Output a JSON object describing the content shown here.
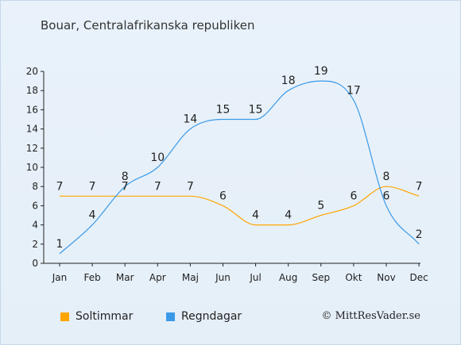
{
  "title": "Bouar, Centralafrikanska republiken",
  "legend": [
    {
      "label": "Soltimmar",
      "color": "#ffa500"
    },
    {
      "label": "Regndagar",
      "color": "#3a9ae8"
    }
  ],
  "copyright": "© MittResVader.se",
  "chart_data": {
    "type": "line",
    "categories": [
      "Jan",
      "Feb",
      "Mar",
      "Apr",
      "Maj",
      "Jun",
      "Jul",
      "Aug",
      "Sep",
      "Okt",
      "Nov",
      "Dec"
    ],
    "series": [
      {
        "name": "Soltimmar",
        "color": "#ffa500",
        "values": [
          7,
          7,
          7,
          7,
          7,
          6,
          4,
          4,
          5,
          6,
          8,
          7
        ]
      },
      {
        "name": "Regndagar",
        "color": "#3a9ae8",
        "values": [
          1,
          4,
          8,
          10,
          14,
          15,
          15,
          18,
          19,
          17,
          6,
          2
        ]
      }
    ],
    "ylim": [
      0,
      20
    ],
    "yticks": [
      0,
      2,
      4,
      6,
      8,
      10,
      12,
      14,
      16,
      18,
      20
    ],
    "grid": false,
    "legend_position": "bottom-left"
  }
}
